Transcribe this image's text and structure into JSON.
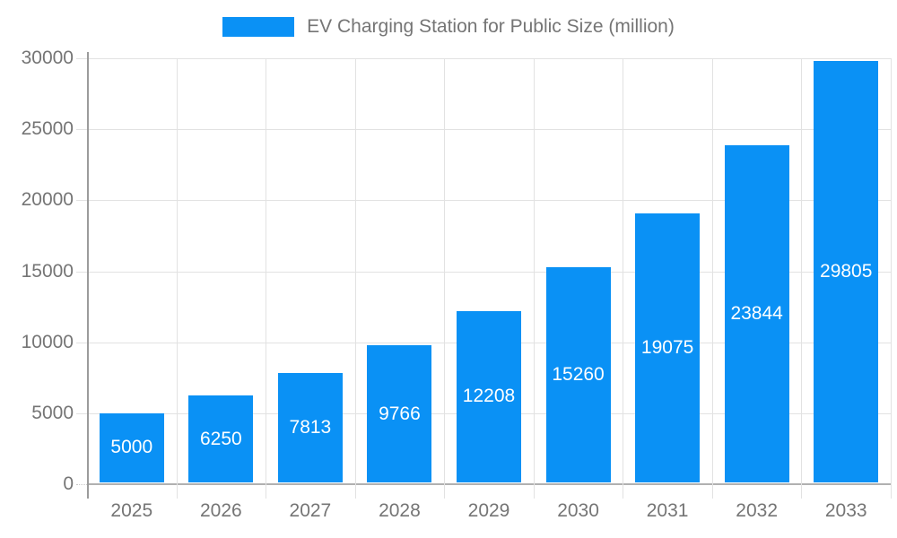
{
  "chart_data": {
    "type": "bar",
    "title": "EV Charging Station for Public Size (million)",
    "legend": {
      "label": "EV Charging Station for Public Size (million)",
      "position": "top"
    },
    "categories": [
      "2025",
      "2026",
      "2027",
      "2028",
      "2029",
      "2030",
      "2031",
      "2032",
      "2033"
    ],
    "values": [
      5000,
      6250,
      7813,
      9766,
      12208,
      15260,
      19075,
      23844,
      29805
    ],
    "value_labels": [
      "5000",
      "6250",
      "7813",
      "9766",
      "12208",
      "15260",
      "19075",
      "23844",
      "29805"
    ],
    "xlabel": "",
    "ylabel": "",
    "ylim": [
      0,
      30000
    ],
    "yticks": [
      0,
      5000,
      10000,
      15000,
      20000,
      25000,
      30000
    ],
    "grid": true,
    "legend_position": "top",
    "colors": {
      "bar": "#0a91f5",
      "bar_label": "#ffffff",
      "grid_line": "#e2e2e2",
      "axis_line": "#9b9b9b",
      "zero_line": "#b0b0b0",
      "tick_text": "#757575",
      "background": "#ffffff"
    }
  }
}
